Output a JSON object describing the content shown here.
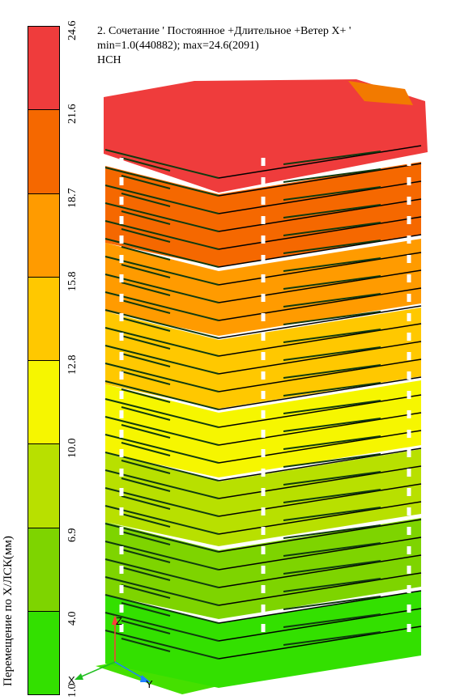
{
  "header": {
    "line1": "2. Сочетание ' Постоянное +Длительное +Ветер X+ '",
    "line2": "min=1.0(440882); max=24.6(2091)",
    "line3": "НСН"
  },
  "legend": {
    "axis_title": "Перемещение по X/ЛСК(мм)",
    "ticks": [
      "1.0",
      "4.0",
      "6.9",
      "10.0",
      "12.8",
      "15.8",
      "18.7",
      "21.6",
      "24.6"
    ],
    "colors": [
      "#33e000",
      "#7ed400",
      "#b8e000",
      "#f6f600",
      "#ffc800",
      "#ff9b00",
      "#f56800",
      "#ef3c3c"
    ]
  },
  "triad": {
    "z_label": "Z",
    "x_label": "X",
    "y_label": "Y",
    "colors": {
      "z": "#ff3b3b",
      "x": "#1fbf1f",
      "y": "#1f7fff"
    }
  },
  "scene": {
    "band_colors": [
      "#33e000",
      "#7ed400",
      "#b8e000",
      "#f6f600",
      "#ffc800",
      "#ff9b00",
      "#f56800",
      "#ef3c3c"
    ],
    "line_color": "#0f3a0f"
  }
}
